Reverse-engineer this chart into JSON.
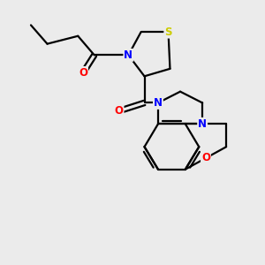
{
  "background_color": "#ebebeb",
  "atom_colors": {
    "S": "#cccc00",
    "N": "#0000ff",
    "O": "#ff0000",
    "C": "#000000"
  },
  "bond_color": "#000000",
  "bond_width": 1.6,
  "figsize": [
    3.0,
    3.0
  ],
  "dpi": 100
}
